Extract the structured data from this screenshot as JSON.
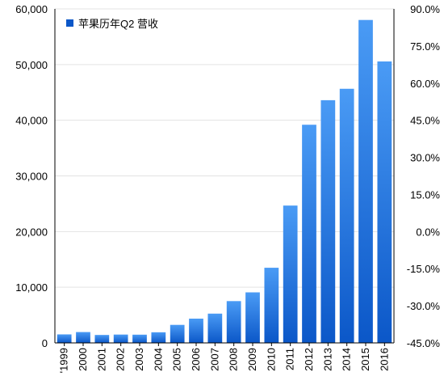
{
  "chart_data": {
    "type": "bar",
    "legend": {
      "label": "苹果历年Q2 营收",
      "placement": "top-left"
    },
    "categories": [
      "'1999",
      "2000",
      "2001",
      "2002",
      "2003",
      "2004",
      "2005",
      "2006",
      "2007",
      "2008",
      "2009",
      "2010",
      "2011",
      "2012",
      "2013",
      "2014",
      "2015",
      "2016"
    ],
    "series": [
      {
        "name": "苹果历年Q2 营收",
        "values": [
          1530,
          1950,
          1430,
          1500,
          1480,
          1910,
          3240,
          4360,
          5260,
          7510,
          9080,
          13500,
          24670,
          39190,
          43600,
          45650,
          58010,
          50560
        ]
      }
    ],
    "y_left": {
      "ticks": [
        "0",
        "10,000",
        "20,000",
        "30,000",
        "40,000",
        "50,000",
        "60,000"
      ],
      "range": [
        0,
        60000
      ]
    },
    "y_right": {
      "ticks": [
        "-45.0%",
        "-30.0%",
        "-15.0%",
        "0.0%",
        "15.0%",
        "30.0%",
        "45.0%",
        "60.0%",
        "75.0%",
        "90.0%"
      ],
      "range": [
        -45,
        90
      ]
    },
    "grid": true,
    "colors": {
      "bar_top": "#4a9bf5",
      "bar_bottom": "#0b57c8",
      "grid": "#e3e3e3",
      "axis": "#000000"
    }
  }
}
